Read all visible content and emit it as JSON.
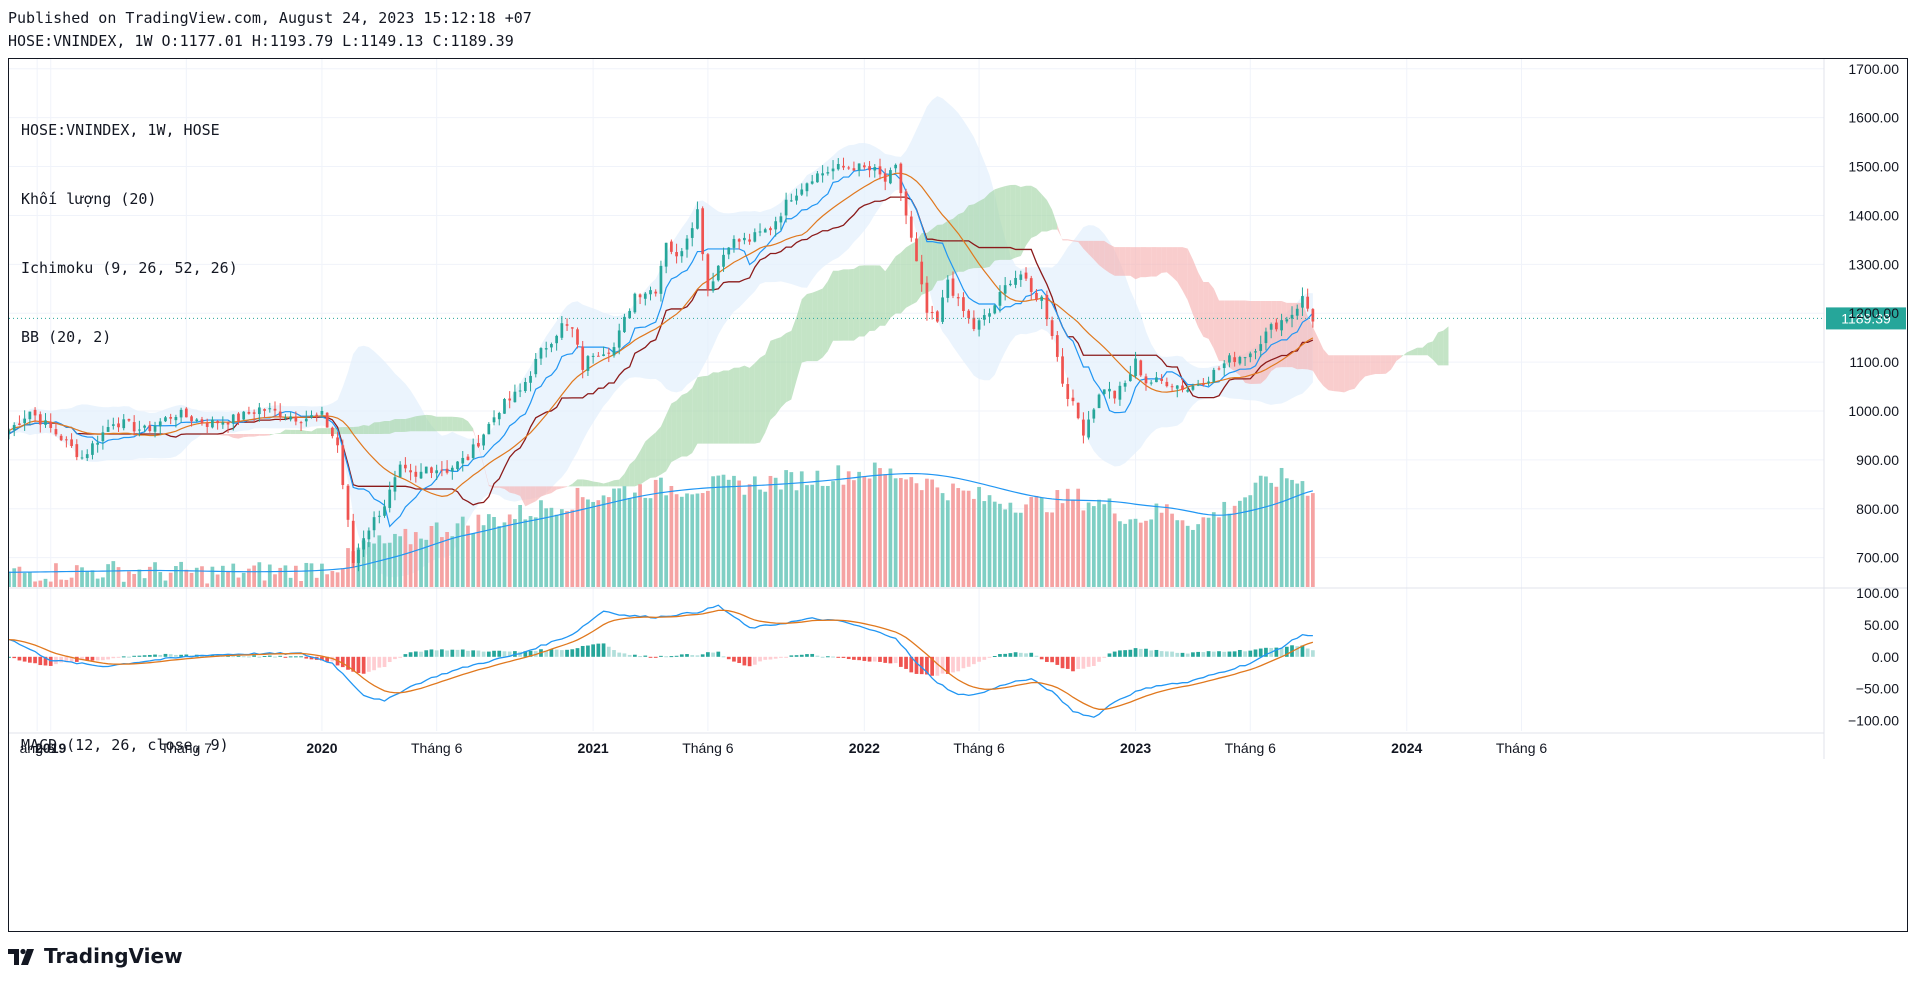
{
  "header": {
    "published": "Published on TradingView.com, August 24, 2023 15:12:18 +07",
    "ohlc": "HOSE:VNINDEX, 1W O:1177.01 H:1193.79 L:1149.13 C:1189.39"
  },
  "legend": {
    "symbol": "HOSE:VNINDEX, 1W, HOSE",
    "volume": "Khối lượng (20)",
    "ichimoku": "Ichimoku (9, 26, 52, 26)",
    "bb": "BB (20, 2)",
    "macd": "MACD (12, 26, close, 9)"
  },
  "brand": {
    "name": "TradingView"
  },
  "colors": {
    "up": "#26a69a",
    "down": "#ef5350",
    "volume_up": "#7fcfc4",
    "volume_down": "#f5a3a3",
    "conversion": "#2196f3",
    "base": "#8b1a1a",
    "lagging": "#e0781e",
    "cloud_up": "#a5d6a7",
    "cloud_down": "#f6b2b2",
    "bb_fill": "#e3f0fc",
    "price_tag": "#26a69a",
    "grid": "#f0f3fa"
  },
  "chart_data": {
    "type": "candlestick",
    "symbol": "HOSE:VNINDEX",
    "interval": "1W",
    "last_price": "1189.39",
    "y_ticks": [
      "1700.00",
      "1600.00",
      "1500.00",
      "1400.00",
      "1300.00",
      "1200.00",
      "1100.00",
      "1000.00",
      "900.00",
      "800.00",
      "700.00"
    ],
    "ylim": [
      640,
      1720
    ],
    "macd_ticks": [
      "100.00",
      "50.00",
      "0.00",
      "−50.00",
      "−100.00"
    ],
    "macd_ylim": [
      -110,
      100
    ],
    "x_ticks": [
      {
        "label": "ang 6",
        "bold": false,
        "t": -2.6
      },
      {
        "label": "2019",
        "bold": true,
        "t": 0
      },
      {
        "label": "Tháng 7",
        "bold": false,
        "t": 26
      },
      {
        "label": "2020",
        "bold": true,
        "t": 52
      },
      {
        "label": "Tháng 6",
        "bold": false,
        "t": 74
      },
      {
        "label": "2021",
        "bold": true,
        "t": 104
      },
      {
        "label": "Tháng 6",
        "bold": false,
        "t": 126
      },
      {
        "label": "2022",
        "bold": true,
        "t": 156
      },
      {
        "label": "Tháng 6",
        "bold": false,
        "t": 178
      },
      {
        "label": "2023",
        "bold": true,
        "t": 208
      },
      {
        "label": "Tháng 6",
        "bold": false,
        "t": 230
      },
      {
        "label": "2024",
        "bold": true,
        "t": 260
      },
      {
        "label": "Tháng 6",
        "bold": false,
        "t": 282
      }
    ],
    "x_domain_weeks": [
      -8,
      340
    ],
    "last_week": 242,
    "close_keypoints": [
      [
        -8,
        960
      ],
      [
        -4,
        1000
      ],
      [
        2,
        945
      ],
      [
        6,
        905
      ],
      [
        12,
        980
      ],
      [
        18,
        960
      ],
      [
        24,
        995
      ],
      [
        30,
        975
      ],
      [
        36,
        985
      ],
      [
        40,
        1005
      ],
      [
        48,
        985
      ],
      [
        52,
        990
      ],
      [
        55,
        930
      ],
      [
        58,
        690
      ],
      [
        60,
        745
      ],
      [
        64,
        810
      ],
      [
        67,
        880
      ],
      [
        70,
        860
      ],
      [
        72,
        885
      ],
      [
        76,
        880
      ],
      [
        80,
        905
      ],
      [
        86,
        1005
      ],
      [
        90,
        1040
      ],
      [
        94,
        1120
      ],
      [
        98,
        1175
      ],
      [
        100,
        1165
      ],
      [
        102,
        1090
      ],
      [
        104,
        1120
      ],
      [
        108,
        1130
      ],
      [
        112,
        1240
      ],
      [
        116,
        1250
      ],
      [
        118,
        1350
      ],
      [
        120,
        1310
      ],
      [
        124,
        1410
      ],
      [
        126,
        1250
      ],
      [
        130,
        1345
      ],
      [
        134,
        1350
      ],
      [
        138,
        1375
      ],
      [
        142,
        1440
      ],
      [
        146,
        1480
      ],
      [
        150,
        1495
      ],
      [
        154,
        1500
      ],
      [
        158,
        1490
      ],
      [
        160,
        1470
      ],
      [
        162,
        1495
      ],
      [
        164,
        1400
      ],
      [
        166,
        1300
      ],
      [
        168,
        1200
      ],
      [
        170,
        1180
      ],
      [
        172,
        1270
      ],
      [
        174,
        1220
      ],
      [
        177,
        1170
      ],
      [
        180,
        1200
      ],
      [
        184,
        1270
      ],
      [
        186,
        1280
      ],
      [
        188,
        1240
      ],
      [
        190,
        1230
      ],
      [
        192,
        1160
      ],
      [
        194,
        1060
      ],
      [
        196,
        1010
      ],
      [
        198,
        960
      ],
      [
        200,
        1010
      ],
      [
        202,
        1050
      ],
      [
        204,
        1030
      ],
      [
        206,
        1055
      ],
      [
        208,
        1100
      ],
      [
        210,
        1060
      ],
      [
        214,
        1060
      ],
      [
        218,
        1045
      ],
      [
        222,
        1070
      ],
      [
        226,
        1105
      ],
      [
        230,
        1120
      ],
      [
        234,
        1170
      ],
      [
        238,
        1200
      ],
      [
        240,
        1230
      ],
      [
        242,
        1189
      ]
    ],
    "volume_keypoints": [
      [
        -8,
        660
      ],
      [
        10,
        665
      ],
      [
        30,
        660
      ],
      [
        48,
        665
      ],
      [
        56,
        680
      ],
      [
        60,
        715
      ],
      [
        66,
        720
      ],
      [
        72,
        745
      ],
      [
        80,
        760
      ],
      [
        90,
        780
      ],
      [
        100,
        810
      ],
      [
        110,
        830
      ],
      [
        120,
        835
      ],
      [
        132,
        840
      ],
      [
        142,
        850
      ],
      [
        150,
        860
      ],
      [
        156,
        868
      ],
      [
        164,
        860
      ],
      [
        172,
        830
      ],
      [
        180,
        810
      ],
      [
        190,
        800
      ],
      [
        196,
        815
      ],
      [
        202,
        800
      ],
      [
        208,
        770
      ],
      [
        214,
        790
      ],
      [
        220,
        760
      ],
      [
        228,
        810
      ],
      [
        234,
        850
      ],
      [
        238,
        855
      ],
      [
        242,
        830
      ]
    ],
    "macd_keypoints": [
      [
        -8,
        28
      ],
      [
        0,
        -5
      ],
      [
        10,
        -15
      ],
      [
        20,
        -5
      ],
      [
        30,
        3
      ],
      [
        40,
        5
      ],
      [
        48,
        5
      ],
      [
        54,
        -10
      ],
      [
        60,
        -60
      ],
      [
        64,
        -70
      ],
      [
        68,
        -50
      ],
      [
        74,
        -30
      ],
      [
        80,
        -15
      ],
      [
        90,
        5
      ],
      [
        100,
        35
      ],
      [
        106,
        72
      ],
      [
        110,
        65
      ],
      [
        116,
        62
      ],
      [
        124,
        70
      ],
      [
        128,
        80
      ],
      [
        134,
        45
      ],
      [
        140,
        52
      ],
      [
        146,
        60
      ],
      [
        152,
        55
      ],
      [
        158,
        40
      ],
      [
        162,
        30
      ],
      [
        166,
        -10
      ],
      [
        170,
        -40
      ],
      [
        174,
        -60
      ],
      [
        178,
        -58
      ],
      [
        184,
        -40
      ],
      [
        188,
        -35
      ],
      [
        192,
        -55
      ],
      [
        196,
        -85
      ],
      [
        200,
        -95
      ],
      [
        204,
        -70
      ],
      [
        208,
        -55
      ],
      [
        212,
        -45
      ],
      [
        218,
        -40
      ],
      [
        224,
        -25
      ],
      [
        230,
        -10
      ],
      [
        236,
        15
      ],
      [
        240,
        35
      ],
      [
        242,
        32
      ]
    ]
  }
}
